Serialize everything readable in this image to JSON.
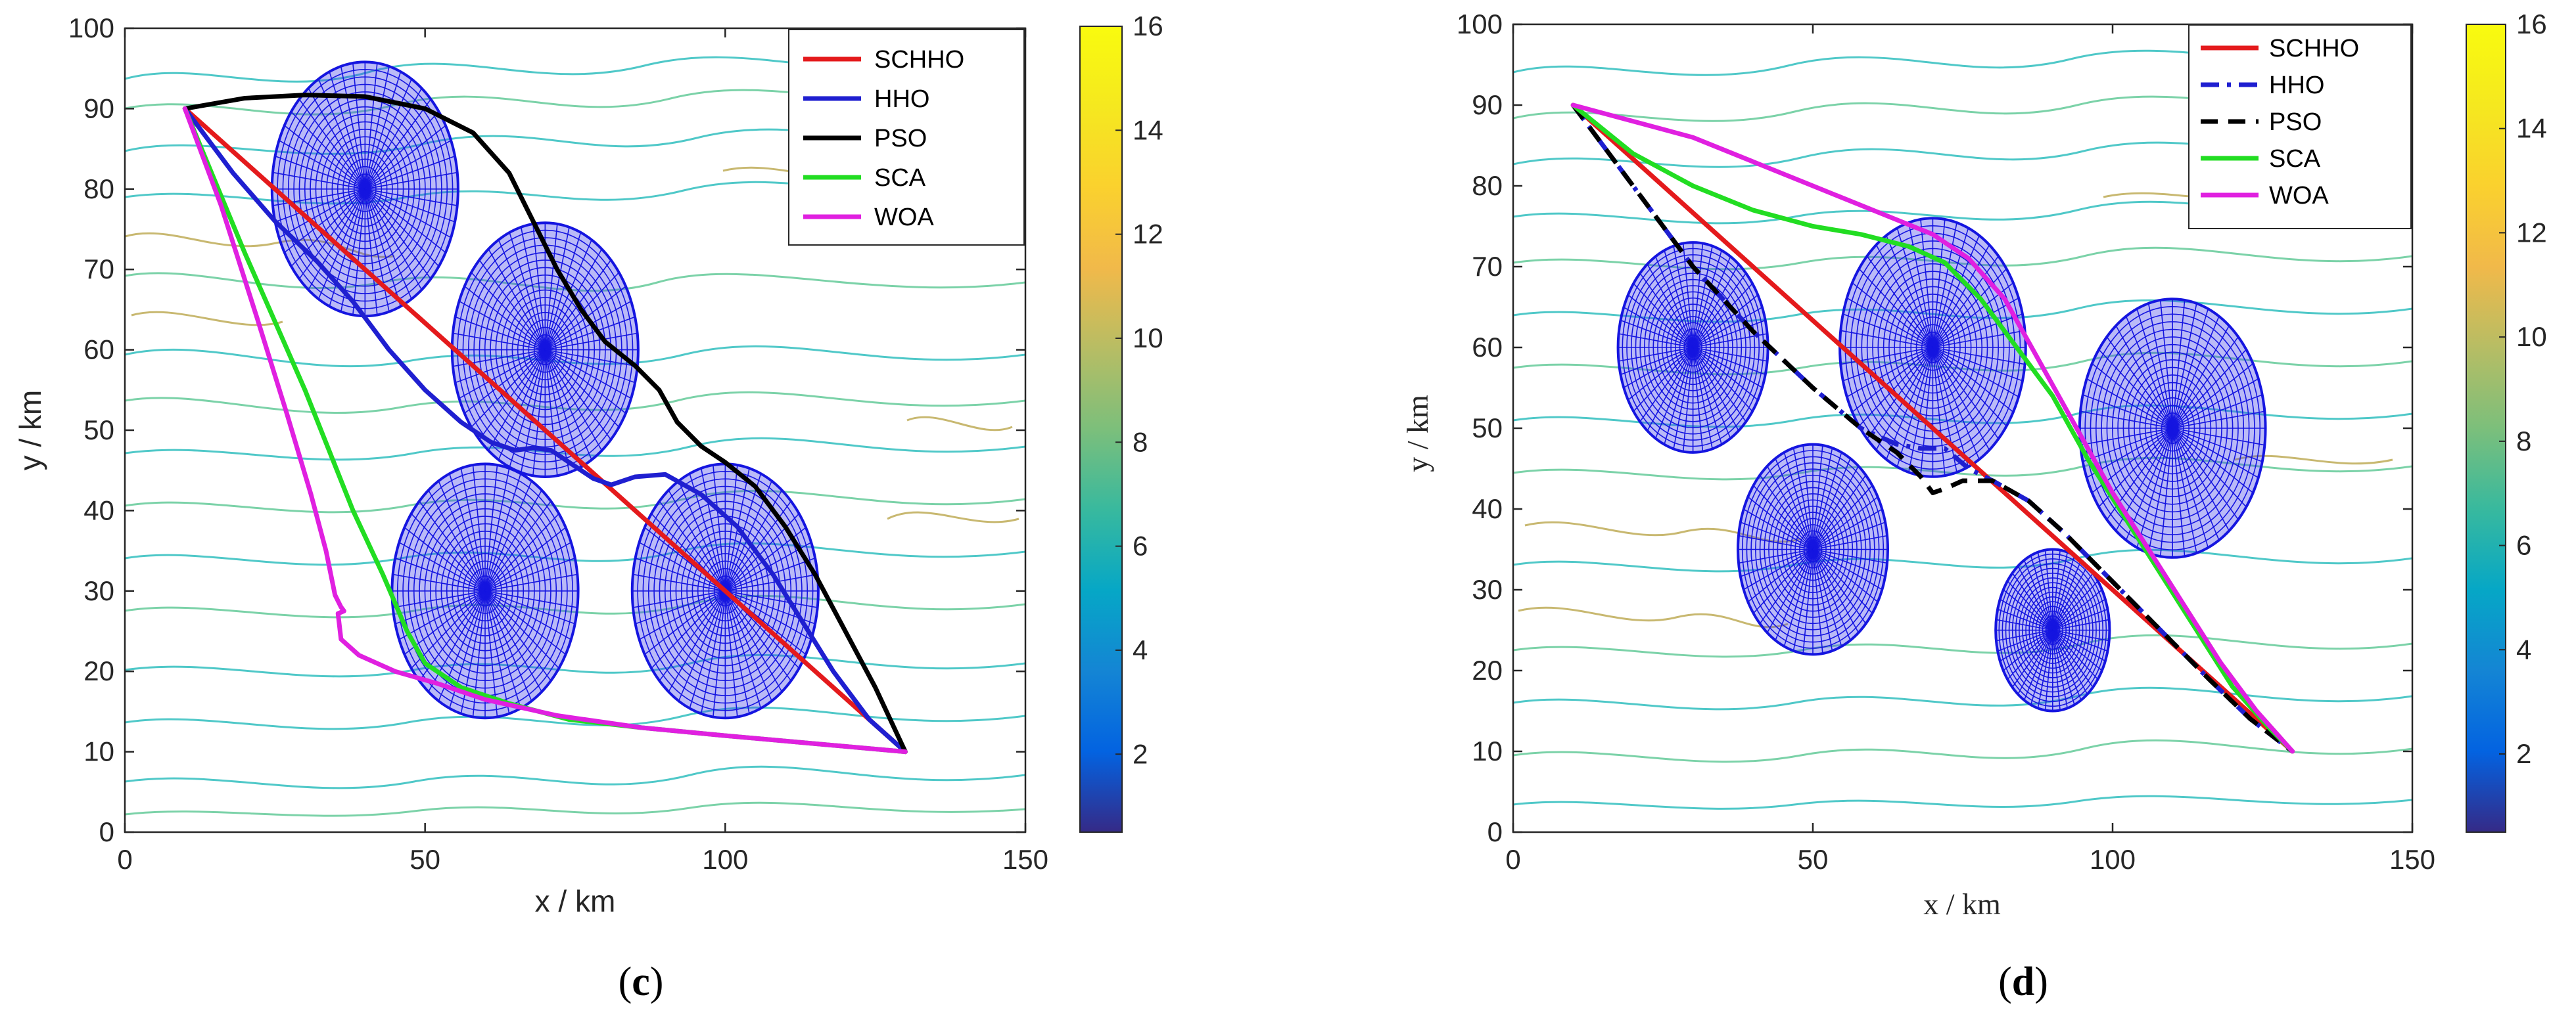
{
  "colors": {
    "SCHHO": "#e41a1c",
    "HHO": "#1f1fd0",
    "PSO": "#000000",
    "SCA": "#22dd22",
    "WOA": "#e020e0",
    "obstacle": "#1515e0"
  },
  "chart_data": [
    {
      "type": "line",
      "panel": "c",
      "caption_open": "(",
      "caption_letter": "c",
      "caption_close": ")",
      "xlabel": "x / km",
      "ylabel": "y / km",
      "xlim": [
        0,
        150
      ],
      "ylim": [
        0,
        100
      ],
      "xticks": [
        0,
        50,
        100,
        150
      ],
      "yticks": [
        0,
        10,
        20,
        30,
        40,
        50,
        60,
        70,
        80,
        90,
        100
      ],
      "colorbar": {
        "range": [
          0.5,
          16
        ],
        "ticks": [
          2,
          4,
          6,
          8,
          10,
          12,
          14,
          16
        ]
      },
      "legend": [
        "SCHHO",
        "HHO",
        "PSO",
        "SCA",
        "WOA"
      ],
      "legend_position": "top-right",
      "obstacles": [
        {
          "cx": 40,
          "cy": 80,
          "rx": 15.5,
          "ry": 15.8
        },
        {
          "cx": 70,
          "cy": 60,
          "rx": 15.5,
          "ry": 15.8
        },
        {
          "cx": 60,
          "cy": 30,
          "rx": 15.5,
          "ry": 15.8
        },
        {
          "cx": 100,
          "cy": 30,
          "rx": 15.5,
          "ry": 15.8
        }
      ],
      "series": [
        {
          "name": "SCHHO",
          "style": "solid",
          "points": [
            [
              10,
              90
            ],
            [
              130,
              10
            ]
          ]
        },
        {
          "name": "HHO",
          "style": "solid",
          "points": [
            [
              10,
              90
            ],
            [
              18,
              82
            ],
            [
              25,
              76
            ],
            [
              32,
              71
            ],
            [
              38,
              66
            ],
            [
              44,
              60
            ],
            [
              50,
              55
            ],
            [
              56,
              51
            ],
            [
              61,
              48.5
            ],
            [
              65,
              47.5
            ],
            [
              68,
              47.8
            ],
            [
              71,
              47.5
            ],
            [
              74,
              46
            ],
            [
              78,
              44
            ],
            [
              81,
              43.2
            ],
            [
              85,
              44.2
            ],
            [
              90,
              44.5
            ],
            [
              96,
              42
            ],
            [
              102,
              38
            ],
            [
              108,
              32
            ],
            [
              113,
              26
            ],
            [
              118,
              20
            ],
            [
              124,
              14
            ],
            [
              130,
              10
            ]
          ]
        },
        {
          "name": "PSO",
          "style": "solid",
          "points": [
            [
              10,
              90
            ],
            [
              20,
              91.3
            ],
            [
              30,
              91.7
            ],
            [
              40,
              91.5
            ],
            [
              50,
              90
            ],
            [
              58,
              87
            ],
            [
              64,
              82
            ],
            [
              68,
              76
            ],
            [
              72,
              70
            ],
            [
              76,
              65
            ],
            [
              80,
              61
            ],
            [
              85,
              58
            ],
            [
              89,
              55
            ],
            [
              92,
              51
            ],
            [
              96,
              48
            ],
            [
              100,
              46
            ],
            [
              105,
              43
            ],
            [
              110,
              38
            ],
            [
              115,
              32
            ],
            [
              120,
              25
            ],
            [
              125,
              18
            ],
            [
              130,
              10
            ]
          ]
        },
        {
          "name": "SCA",
          "style": "solid",
          "points": [
            [
              10,
              90
            ],
            [
              20,
              72
            ],
            [
              30,
              55
            ],
            [
              38,
              40
            ],
            [
              43,
              32
            ],
            [
              47,
              25
            ],
            [
              50,
              21
            ],
            [
              56,
              18
            ],
            [
              64,
              16
            ],
            [
              74,
              14
            ],
            [
              86,
              13
            ],
            [
              100,
              12
            ],
            [
              115,
              11
            ],
            [
              130,
              10
            ]
          ]
        },
        {
          "name": "WOA",
          "style": "solid",
          "points": [
            [
              10,
              90
            ],
            [
              16,
              78
            ],
            [
              22,
              64
            ],
            [
              27,
              52
            ],
            [
              31,
              42
            ],
            [
              33.5,
              35
            ],
            [
              35,
              29.5
            ],
            [
              36,
              28
            ],
            [
              36.5,
              27.5
            ],
            [
              35.5,
              27.2
            ],
            [
              36,
              24
            ],
            [
              39,
              22
            ],
            [
              45,
              20
            ],
            [
              52,
              18.5
            ],
            [
              60,
              16.5
            ],
            [
              72,
              14.5
            ],
            [
              86,
              13
            ],
            [
              100,
              12
            ],
            [
              115,
              11
            ],
            [
              130,
              10
            ]
          ]
        }
      ]
    },
    {
      "type": "line",
      "panel": "d",
      "caption_open": "(",
      "caption_letter": "d",
      "caption_close": ")",
      "xlabel": "x / km",
      "ylabel": "y / km",
      "xlim": [
        0,
        150
      ],
      "ylim": [
        0,
        100
      ],
      "xticks": [
        0,
        50,
        100,
        150
      ],
      "yticks": [
        0,
        10,
        20,
        30,
        40,
        50,
        60,
        70,
        80,
        90,
        100
      ],
      "colorbar": {
        "range": [
          0.5,
          16
        ],
        "ticks": [
          2,
          4,
          6,
          8,
          10,
          12,
          14,
          16
        ]
      },
      "legend": [
        "SCHHO",
        "HHO",
        "PSO",
        "SCA",
        "WOA"
      ],
      "legend_position": "top-right",
      "obstacles": [
        {
          "cx": 30,
          "cy": 60,
          "rx": 12.5,
          "ry": 13
        },
        {
          "cx": 70,
          "cy": 60,
          "rx": 15.5,
          "ry": 16
        },
        {
          "cx": 110,
          "cy": 50,
          "rx": 15.5,
          "ry": 16
        },
        {
          "cx": 50,
          "cy": 35,
          "rx": 12.5,
          "ry": 13
        },
        {
          "cx": 90,
          "cy": 25,
          "rx": 9.5,
          "ry": 10
        }
      ],
      "series": [
        {
          "name": "SCHHO",
          "style": "solid",
          "points": [
            [
              10,
              90
            ],
            [
              130,
              10
            ]
          ]
        },
        {
          "name": "HHO",
          "style": "dashdot",
          "points": [
            [
              10,
              90
            ],
            [
              20,
              80
            ],
            [
              30,
              70
            ],
            [
              40,
              62
            ],
            [
              50,
              55
            ],
            [
              58,
              50
            ],
            [
              64,
              48
            ],
            [
              68,
              47.5
            ],
            [
              72,
              47.5
            ],
            [
              76,
              45
            ],
            [
              80,
              43.5
            ],
            [
              86,
              41
            ],
            [
              92,
              37
            ],
            [
              100,
              31
            ],
            [
              108,
              25
            ],
            [
              116,
              19
            ],
            [
              123,
              14
            ],
            [
              130,
              10
            ]
          ]
        },
        {
          "name": "PSO",
          "style": "dashed",
          "points": [
            [
              10,
              90
            ],
            [
              20,
              80
            ],
            [
              30,
              70
            ],
            [
              40,
              62
            ],
            [
              50,
              55
            ],
            [
              58,
              50
            ],
            [
              64,
              47
            ],
            [
              68,
              44
            ],
            [
              70,
              42
            ],
            [
              72,
              42.5
            ],
            [
              75,
              43.5
            ],
            [
              80,
              43.5
            ],
            [
              86,
              41
            ],
            [
              92,
              37
            ],
            [
              100,
              31
            ],
            [
              108,
              25
            ],
            [
              116,
              19
            ],
            [
              123,
              14
            ],
            [
              130,
              10
            ]
          ]
        },
        {
          "name": "SCA",
          "style": "solid",
          "points": [
            [
              10,
              90
            ],
            [
              20,
              84
            ],
            [
              30,
              80
            ],
            [
              40,
              77
            ],
            [
              50,
              75
            ],
            [
              58,
              74
            ],
            [
              66,
              72.5
            ],
            [
              72,
              70.5
            ],
            [
              78,
              66
            ],
            [
              84,
              60
            ],
            [
              90,
              54
            ],
            [
              96,
              46
            ],
            [
              102,
              39
            ],
            [
              108,
              32
            ],
            [
              114,
              25
            ],
            [
              120,
              18
            ],
            [
              126,
              13
            ],
            [
              130,
              10
            ]
          ]
        },
        {
          "name": "WOA",
          "style": "solid",
          "points": [
            [
              10,
              90
            ],
            [
              20,
              88
            ],
            [
              30,
              86
            ],
            [
              40,
              83
            ],
            [
              50,
              80
            ],
            [
              60,
              77
            ],
            [
              70,
              74
            ],
            [
              76,
              71
            ],
            [
              82,
              66
            ],
            [
              88,
              58
            ],
            [
              94,
              50
            ],
            [
              100,
              42
            ],
            [
              106,
              35
            ],
            [
              112,
              28
            ],
            [
              118,
              21
            ],
            [
              124,
              15
            ],
            [
              130,
              10
            ]
          ]
        }
      ]
    }
  ]
}
